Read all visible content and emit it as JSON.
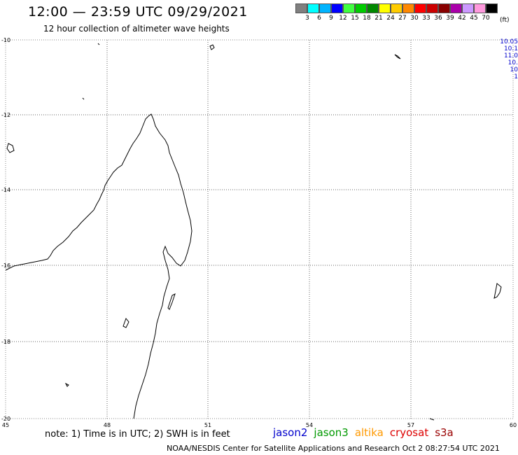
{
  "header": {
    "title": "12:00 — 23:59 UTC 09/29/2021",
    "subtitle": "12 hour collection of altimeter wave heights"
  },
  "legend": {
    "unit": "(ft)",
    "bins": [
      {
        "label": "3",
        "color": "#808080"
      },
      {
        "label": "6",
        "color": "#00ffff"
      },
      {
        "label": "9",
        "color": "#00b4ff"
      },
      {
        "label": "12",
        "color": "#0000ff"
      },
      {
        "label": "15",
        "color": "#40ff40"
      },
      {
        "label": "18",
        "color": "#00cc00"
      },
      {
        "label": "21",
        "color": "#008800"
      },
      {
        "label": "24",
        "color": "#ffff00"
      },
      {
        "label": "27",
        "color": "#ffcc00"
      },
      {
        "label": "30",
        "color": "#ff8800"
      },
      {
        "label": "33",
        "color": "#ff0000"
      },
      {
        "label": "36",
        "color": "#cc0000"
      },
      {
        "label": "39",
        "color": "#880000"
      },
      {
        "label": "42",
        "color": "#aa00aa"
      },
      {
        "label": "45",
        "color": "#cc99ff"
      },
      {
        "label": "70",
        "color": "#ff99dd"
      },
      {
        "label": "",
        "color": "#000000"
      }
    ]
  },
  "map": {
    "lat_labels": [
      "-10",
      "-12",
      "-14",
      "-16",
      "-18",
      "-20"
    ],
    "lon_labels": [
      "45",
      "48",
      "51",
      "54",
      "57",
      "60"
    ],
    "pass_times": [
      "10.05",
      "10.1",
      "11.0",
      "10.",
      "10",
      "1"
    ]
  },
  "footer": {
    "note": "note: 1) Time is in UTC; 2) SWH is in feet",
    "satellites": [
      {
        "name": "jason2",
        "color": "#0000cc"
      },
      {
        "name": "jason3",
        "color": "#009900"
      },
      {
        "name": "altika",
        "color": "#ff9900"
      },
      {
        "name": "cryosat",
        "color": "#dd0000"
      },
      {
        "name": "s3a",
        "color": "#990000"
      }
    ],
    "credit": "NOAA/NESDIS Center for Satellite Applications and Research   Oct  2 08:27:54 UTC 2021"
  }
}
